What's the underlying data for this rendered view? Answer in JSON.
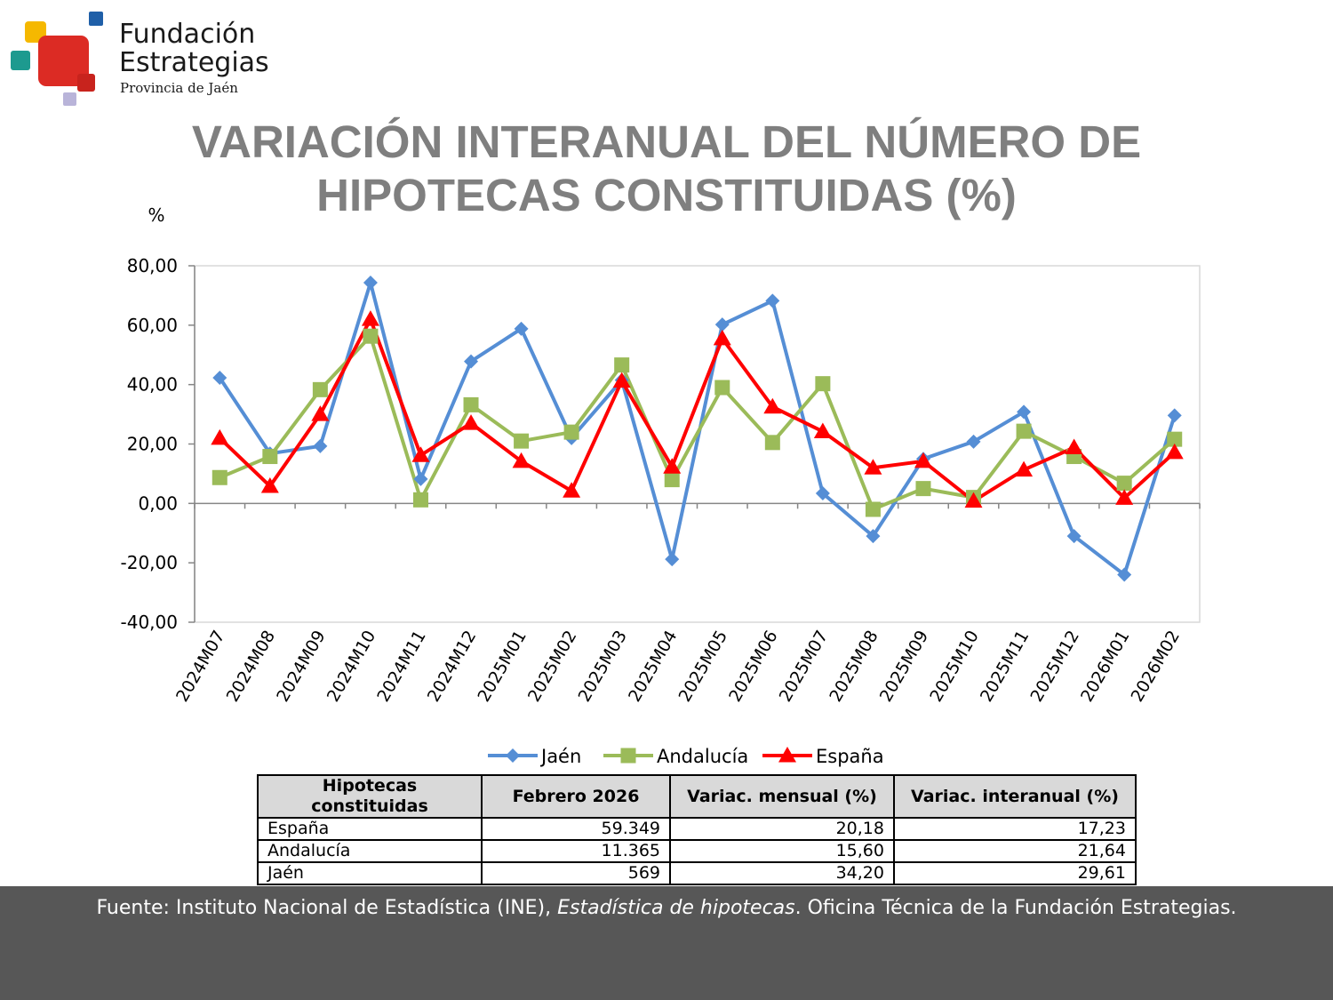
{
  "logo": {
    "line1": "Fundación",
    "line2": "Estrategias",
    "line3": "Provincia de Jaén"
  },
  "title": {
    "line1": "VARIACIÓN INTERANUAL DEL NÚMERO DE",
    "line2": "HIPOTECAS CONSTITUIDAS (%)"
  },
  "chart_data": {
    "type": "line",
    "ylabel": "%",
    "ylim": [
      -40,
      80
    ],
    "yticks": [
      "80,00",
      "60,00",
      "40,00",
      "20,00",
      "0,00",
      "-20,00",
      "-40,00"
    ],
    "ytick_values": [
      80,
      60,
      40,
      20,
      0,
      -20,
      -40
    ],
    "categories": [
      "2024M07",
      "2024M08",
      "2024M09",
      "2024M10",
      "2024M11",
      "2024M12",
      "2025M01",
      "2025M02",
      "2025M03",
      "2025M04",
      "2025M05",
      "2025M06",
      "2025M07",
      "2025M08",
      "2025M09",
      "2025M10",
      "2025M11",
      "2025M12",
      "2026M01",
      "2026M02"
    ],
    "legend_position": "bottom",
    "grid": false,
    "series": [
      {
        "name": "Jaén",
        "color": "#558ed5",
        "marker": "diamond",
        "values": [
          42.3,
          16.8,
          19.3,
          74.3,
          8.2,
          47.8,
          58.8,
          22.0,
          41.5,
          -18.8,
          60.2,
          68.2,
          3.4,
          -11.0,
          15.0,
          20.8,
          30.8,
          -11.0,
          -24.0,
          29.6
        ]
      },
      {
        "name": "Andalucía",
        "color": "#9bbb59",
        "marker": "square",
        "values": [
          8.7,
          15.8,
          38.3,
          56.3,
          1.2,
          33.2,
          21.0,
          24.0,
          46.6,
          8.0,
          39.0,
          20.5,
          40.3,
          -2.0,
          5.0,
          2.0,
          24.3,
          15.8,
          6.8,
          21.6
        ]
      },
      {
        "name": "España",
        "color": "#ff0000",
        "marker": "triangle",
        "values": [
          22.0,
          5.8,
          30.0,
          62.0,
          16.2,
          27.0,
          14.2,
          4.2,
          41.2,
          12.3,
          55.5,
          32.5,
          24.2,
          12.0,
          14.2,
          0.8,
          11.3,
          18.8,
          1.8,
          17.2
        ]
      }
    ]
  },
  "table": {
    "headers": [
      "Hipotecas constituidas",
      "Febrero 2026",
      "Variac. mensual (%)",
      "Variac. interanual (%)"
    ],
    "rows": [
      [
        "España",
        "59.349",
        "20,18",
        "17,23"
      ],
      [
        "Andalucía",
        "11.365",
        "15,60",
        "21,64"
      ],
      [
        "Jaén",
        "569",
        "34,20",
        "29,61"
      ]
    ]
  },
  "footer": {
    "source_prefix": "Fuente: Instituto Nacional de Estadística (INE), ",
    "source_italic": "Estadística de hipotecas",
    "source_suffix": ". Oficina Técnica de la Fundación Estrategias."
  }
}
